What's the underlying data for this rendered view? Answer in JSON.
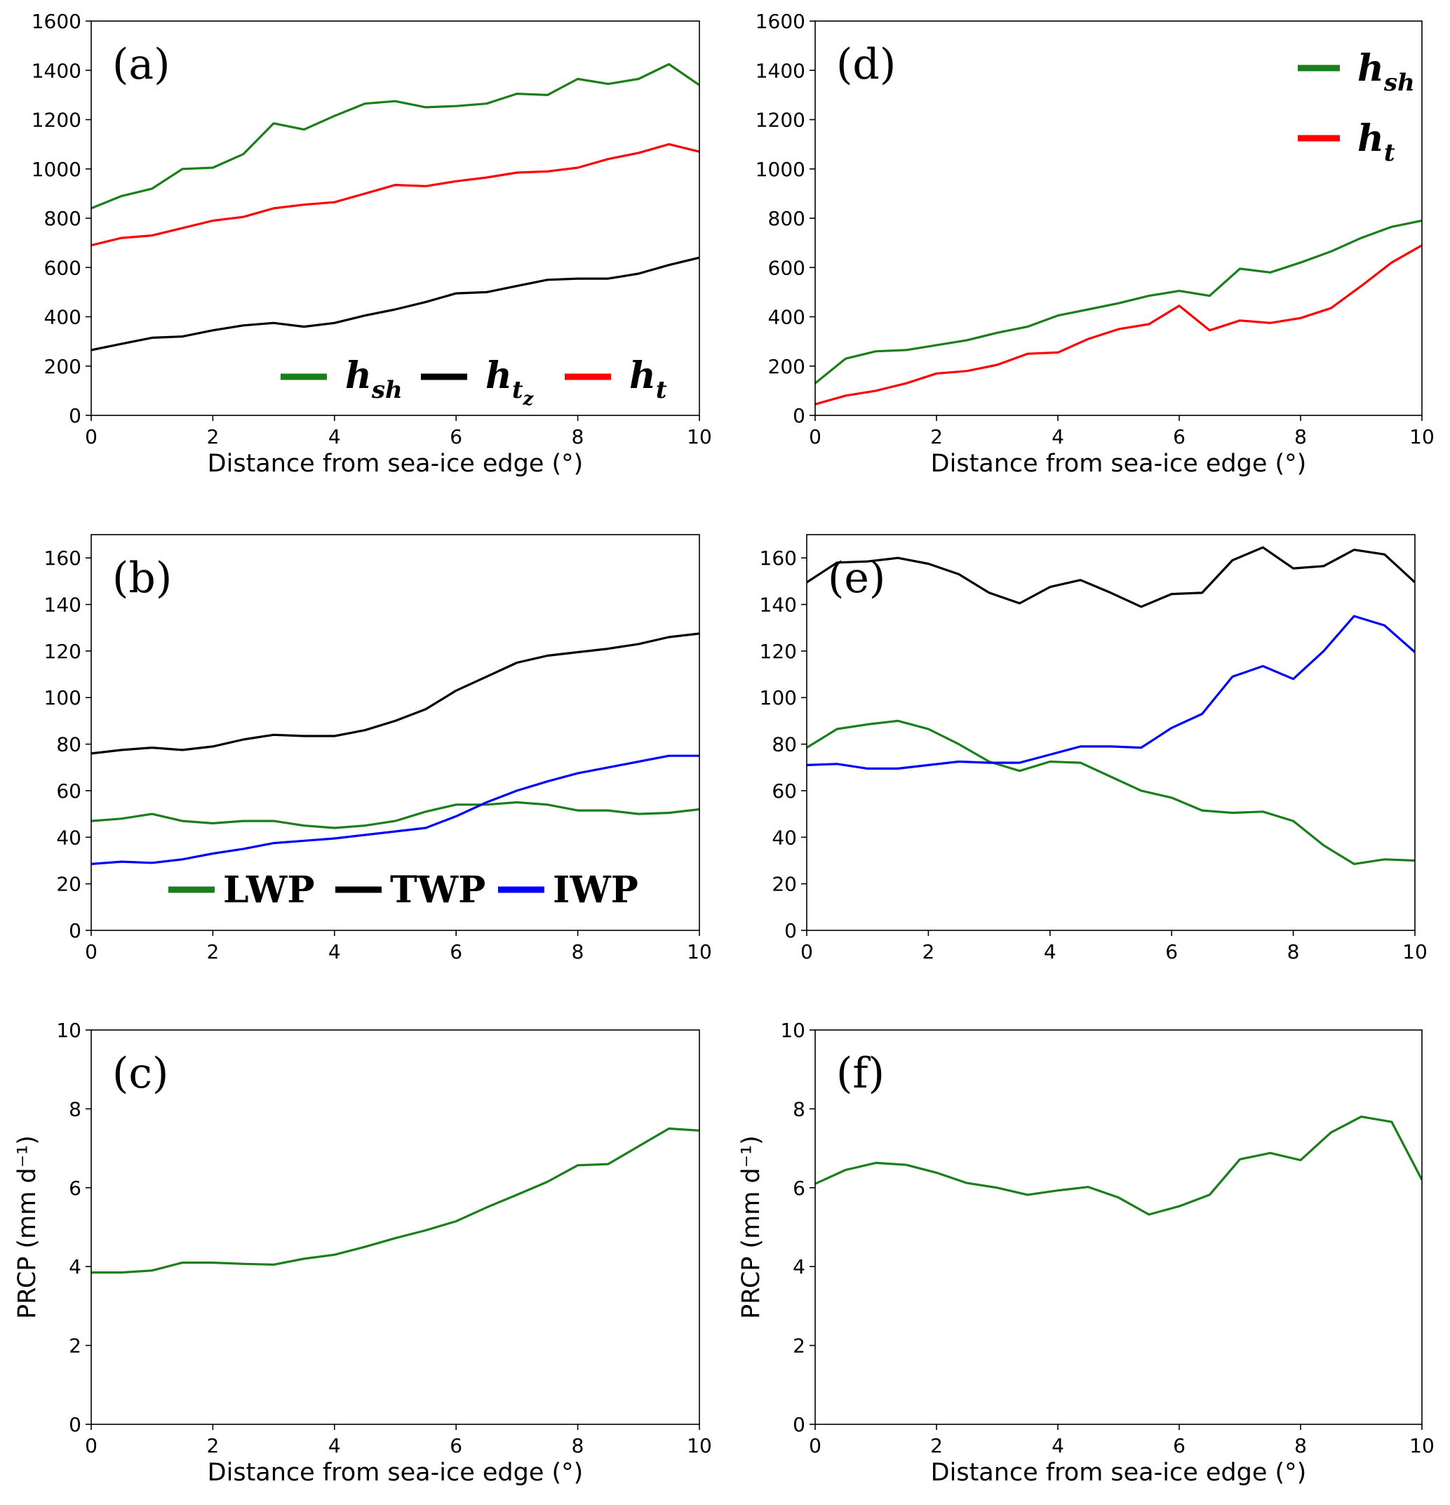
{
  "chart_data": [
    {
      "id": "a",
      "panel_label": "(a)",
      "type": "line",
      "xlabel": "Distance from sea-ice edge (°)",
      "ylabel": "",
      "xlim": [
        0,
        10
      ],
      "ylim": [
        0,
        1600
      ],
      "xticks": [
        "0",
        "2",
        "4",
        "6",
        "8",
        "10"
      ],
      "yticks": [
        "0",
        "200",
        "400",
        "600",
        "800",
        "1000",
        "1200",
        "1400",
        "1600"
      ],
      "x": [
        0,
        0.5,
        1,
        1.5,
        2,
        2.5,
        3,
        3.5,
        4,
        4.5,
        5,
        5.5,
        6,
        6.5,
        7,
        7.5,
        8,
        8.5,
        9,
        9.5,
        10
      ],
      "legend_placement": "bottom-right",
      "series": [
        {
          "name": "hsh",
          "base": "h",
          "sub": "sh",
          "subsub": "",
          "color": "#1a7f1a",
          "values": [
            840,
            890,
            920,
            1000,
            1005,
            1060,
            1185,
            1160,
            1215,
            1265,
            1275,
            1250,
            1255,
            1265,
            1305,
            1300,
            1365,
            1345,
            1365,
            1425,
            1340
          ]
        },
        {
          "name": "htz",
          "base": "h",
          "sub": "t",
          "subsub": "z",
          "color": "#000000",
          "values": [
            265,
            290,
            315,
            320,
            345,
            365,
            375,
            360,
            375,
            405,
            430,
            460,
            495,
            500,
            525,
            550,
            555,
            555,
            575,
            610,
            640
          ]
        },
        {
          "name": "ht",
          "base": "h",
          "sub": "t",
          "subsub": "",
          "color": "#ff0000",
          "values": [
            690,
            720,
            730,
            760,
            790,
            805,
            840,
            855,
            865,
            900,
            935,
            930,
            950,
            965,
            985,
            990,
            1005,
            1040,
            1065,
            1100,
            1070
          ]
        }
      ]
    },
    {
      "id": "b",
      "panel_label": "(b)",
      "type": "line",
      "xlabel": "",
      "ylabel": "",
      "xlim": [
        0,
        10
      ],
      "ylim": [
        0,
        170
      ],
      "xticks": [
        "0",
        "2",
        "4",
        "6",
        "8",
        "10"
      ],
      "yticks": [
        "0",
        "20",
        "40",
        "60",
        "80",
        "100",
        "120",
        "140",
        "160"
      ],
      "x": [
        0,
        0.5,
        1,
        1.5,
        2,
        2.5,
        3,
        3.5,
        4,
        4.5,
        5,
        5.5,
        6,
        6.5,
        7,
        7.5,
        8,
        8.5,
        9,
        9.5,
        10
      ],
      "legend_placement": "bottom-center",
      "series": [
        {
          "name": "LWP",
          "color": "#1a7f1a",
          "values": [
            47,
            48,
            50,
            47,
            46,
            47,
            47,
            45,
            44,
            45,
            47,
            51,
            54,
            54,
            55,
            54,
            51.5,
            51.5,
            50,
            50.5,
            52
          ]
        },
        {
          "name": "TWP",
          "color": "#000000",
          "values": [
            76,
            77.5,
            78.5,
            77.5,
            79,
            82,
            84,
            83.5,
            83.5,
            86,
            90,
            95,
            103,
            109,
            115,
            118,
            119.5,
            121,
            123,
            126,
            127.5
          ]
        },
        {
          "name": "IWP",
          "color": "#0000ff",
          "values": [
            28.5,
            29.5,
            29,
            30.5,
            33,
            35,
            37.5,
            38.5,
            39.5,
            41,
            42.5,
            44,
            49,
            55,
            60,
            64,
            67.5,
            70,
            72.5,
            75,
            75
          ]
        }
      ]
    },
    {
      "id": "c",
      "panel_label": "(c)",
      "type": "line",
      "xlabel": "Distance from sea-ice edge (°)",
      "ylabel": "PRCP (mm d⁻¹)",
      "xlim": [
        0,
        10
      ],
      "ylim": [
        0,
        10
      ],
      "xticks": [
        "0",
        "2",
        "4",
        "6",
        "8",
        "10"
      ],
      "yticks": [
        "0",
        "2",
        "4",
        "6",
        "8",
        "10"
      ],
      "x": [
        0,
        0.5,
        1,
        1.5,
        2,
        2.5,
        3,
        3.5,
        4,
        4.5,
        5,
        5.5,
        6,
        6.5,
        7,
        7.5,
        8,
        8.5,
        9,
        9.5,
        10
      ],
      "series": [
        {
          "name": "",
          "color": "#1a7f1a",
          "values": [
            3.85,
            3.85,
            3.9,
            4.1,
            4.1,
            4.07,
            4.05,
            4.2,
            4.3,
            4.5,
            4.72,
            4.92,
            5.15,
            5.5,
            5.82,
            6.15,
            6.57,
            6.6,
            7.05,
            7.5,
            7.45
          ]
        }
      ]
    },
    {
      "id": "d",
      "panel_label": "(d)",
      "type": "line",
      "xlabel": "Distance from sea-ice edge (°)",
      "ylabel": "",
      "xlim": [
        0,
        10
      ],
      "ylim": [
        0,
        1600
      ],
      "xticks": [
        "0",
        "2",
        "4",
        "6",
        "8",
        "10"
      ],
      "yticks": [
        "0",
        "200",
        "400",
        "600",
        "800",
        "1000",
        "1200",
        "1400",
        "1600"
      ],
      "x": [
        0,
        0.5,
        1,
        1.5,
        2,
        2.5,
        3,
        3.5,
        4,
        4.5,
        5,
        5.5,
        6,
        6.5,
        7,
        7.5,
        8,
        8.5,
        9,
        9.5,
        10
      ],
      "legend_placement": "top-right",
      "series": [
        {
          "name": "hsh",
          "base": "h",
          "sub": "sh",
          "subsub": "",
          "color": "#1a7f1a",
          "values": [
            130,
            230,
            260,
            265,
            285,
            305,
            335,
            360,
            405,
            430,
            455,
            485,
            505,
            485,
            595,
            580,
            620,
            665,
            720,
            765,
            790
          ]
        },
        {
          "name": "ht",
          "base": "h",
          "sub": "t",
          "subsub": "",
          "color": "#ff0000",
          "values": [
            45,
            80,
            100,
            130,
            170,
            180,
            205,
            250,
            255,
            310,
            350,
            370,
            445,
            345,
            385,
            375,
            395,
            435,
            525,
            620,
            690
          ]
        }
      ]
    },
    {
      "id": "e",
      "panel_label": "(e)",
      "type": "line",
      "xlabel": "",
      "ylabel": "",
      "xlim": [
        0,
        10
      ],
      "ylim": [
        0,
        170
      ],
      "xticks": [
        "0",
        "2",
        "4",
        "6",
        "8",
        "10"
      ],
      "yticks": [
        "0",
        "20",
        "40",
        "60",
        "80",
        "100",
        "120",
        "140",
        "160"
      ],
      "x": [
        0,
        0.5,
        1,
        1.5,
        2,
        2.5,
        3,
        3.5,
        4,
        4.5,
        5,
        5.5,
        6,
        6.5,
        7,
        7.5,
        8,
        8.5,
        9,
        9.5,
        10
      ],
      "series": [
        {
          "name": "",
          "color": "#000000",
          "values": [
            149.5,
            158,
            158.5,
            160,
            157.5,
            153,
            145,
            140.5,
            147.5,
            150.5,
            145,
            139,
            144.5,
            145,
            159,
            164.5,
            155.5,
            156.5,
            163.5,
            161.5,
            149.5
          ]
        },
        {
          "name": "",
          "color": "#1a7f1a",
          "values": [
            78.5,
            86.5,
            88.5,
            90,
            86.5,
            80,
            72.5,
            68.5,
            72.5,
            72,
            66,
            60,
            57,
            51.5,
            50.5,
            51,
            47,
            36.5,
            28.5,
            30.5,
            30
          ]
        },
        {
          "name": "",
          "color": "#0000ff",
          "values": [
            71,
            71.5,
            69.5,
            69.5,
            71,
            72.5,
            72,
            72,
            75.5,
            79,
            79,
            78.5,
            87,
            93,
            109,
            113.5,
            108,
            120,
            135,
            131,
            119.5
          ]
        }
      ]
    },
    {
      "id": "f",
      "panel_label": "(f)",
      "type": "line",
      "xlabel": "Distance from sea-ice edge (°)",
      "ylabel": "PRCP (mm d⁻¹)",
      "xlim": [
        0,
        10
      ],
      "ylim": [
        0,
        10
      ],
      "xticks": [
        "0",
        "2",
        "4",
        "6",
        "8",
        "10"
      ],
      "yticks": [
        "0",
        "2",
        "4",
        "6",
        "8",
        "10"
      ],
      "x": [
        0,
        0.5,
        1,
        1.5,
        2,
        2.5,
        3,
        3.5,
        4,
        4.5,
        5,
        5.5,
        6,
        6.5,
        7,
        7.5,
        8,
        8.5,
        9,
        9.5,
        10
      ],
      "series": [
        {
          "name": "",
          "color": "#1a7f1a",
          "values": [
            6.1,
            6.45,
            6.63,
            6.58,
            6.38,
            6.12,
            6.0,
            5.82,
            5.93,
            6.02,
            5.75,
            5.32,
            5.53,
            5.82,
            6.72,
            6.88,
            6.7,
            7.4,
            7.8,
            7.67,
            6.2
          ]
        }
      ]
    }
  ]
}
